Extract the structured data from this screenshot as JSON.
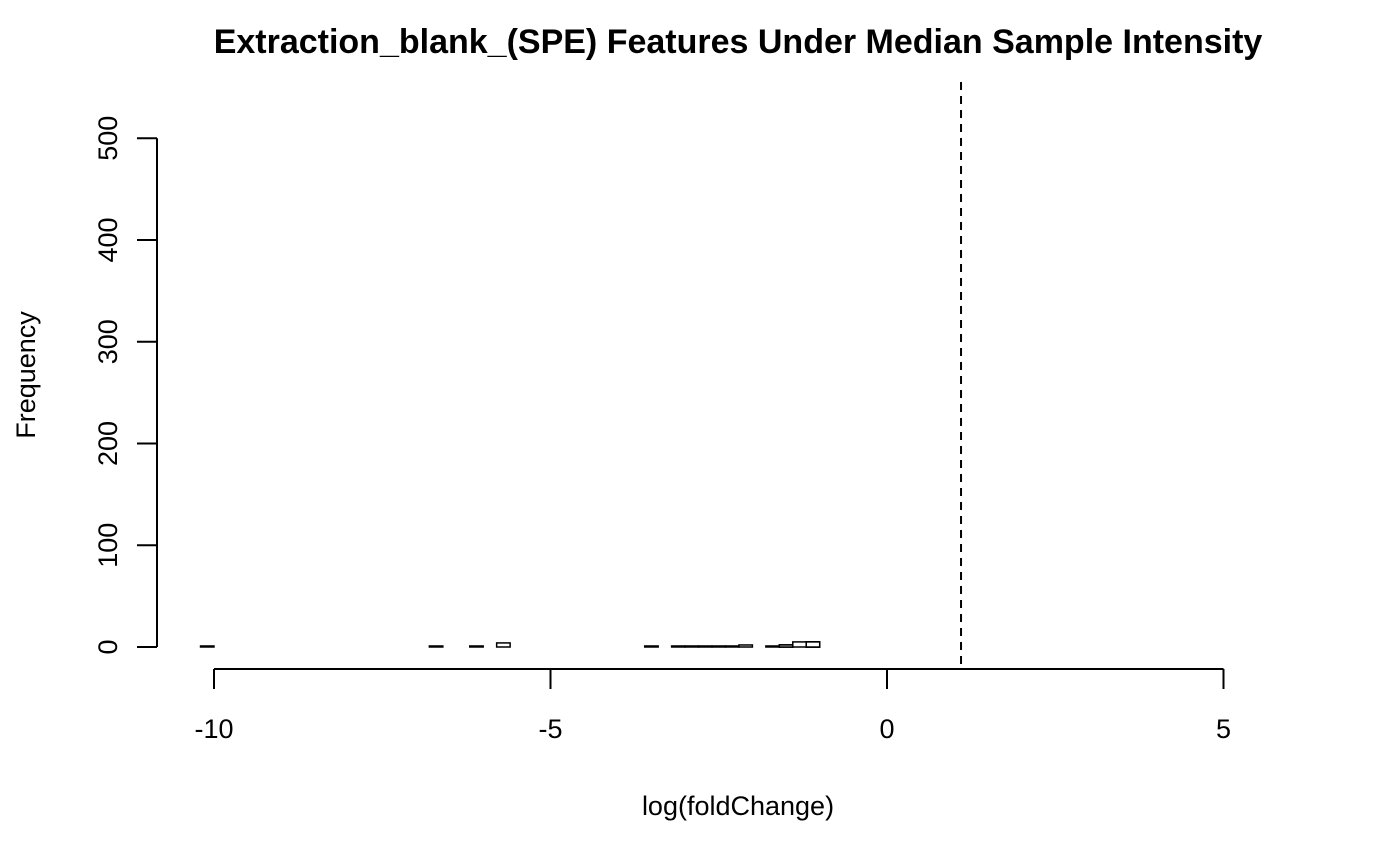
{
  "chart_data": {
    "type": "bar",
    "title": "Extraction_blank_(SPE) Features Under Median Sample Intensity",
    "xlabel": "log(foldChange)",
    "ylabel": "Frequency",
    "xlim": [
      -10.2,
      5.8
    ],
    "ylim": [
      0,
      540
    ],
    "x_ticks": [
      -10,
      -5,
      0,
      5
    ],
    "y_ticks": [
      0,
      100,
      200,
      300,
      400,
      500
    ],
    "bin_width": 0.2,
    "bins": [
      {
        "x0": -10.2,
        "count": 1
      },
      {
        "x0": -6.8,
        "count": 1
      },
      {
        "x0": -6.2,
        "count": 1
      },
      {
        "x0": -5.8,
        "count": 4
      },
      {
        "x0": -3.6,
        "count": 1
      },
      {
        "x0": -3.2,
        "count": 1
      },
      {
        "x0": -3.0,
        "count": 1
      },
      {
        "x0": -2.8,
        "count": 1
      },
      {
        "x0": -2.6,
        "count": 1
      },
      {
        "x0": -2.4,
        "count": 1
      },
      {
        "x0": -2.2,
        "count": 2
      },
      {
        "x0": -1.8,
        "count": 1
      },
      {
        "x0": -1.6,
        "count": 2
      },
      {
        "x0": -1.6,
        "count": 2
      },
      {
        "x0": -1.6,
        "count": 2
      },
      {
        "x0": -1.4,
        "count": 5
      },
      {
        "x0": -1.2,
        "count": 5
      },
      {
        "x0": -1.2,
        "count": 5
      },
      {
        "x0": -1.2,
        "count": 5
      },
      {
        "x0": -1.2,
        "count": 5
      }
    ],
    "reference_line": {
      "x": 1.1,
      "style": "dashed"
    }
  }
}
